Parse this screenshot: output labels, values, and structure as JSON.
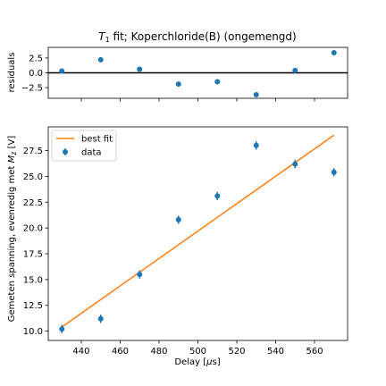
{
  "chart_data": [
    {
      "type": "scatter",
      "role": "residuals",
      "title_symbol": "T",
      "title_subscript": "1",
      "title_rest": " fit; Koperchloride(B) (ongemengd)",
      "ylabel": "residuals",
      "ylim": [
        -4.3,
        4.3
      ],
      "xlim": [
        423,
        577
      ],
      "yticks": [
        -2.5,
        0.0,
        2.5
      ],
      "ytick_labels": [
        "−2.5",
        "0.0",
        "2.5"
      ],
      "zero_line": true,
      "series": [
        {
          "name": "",
          "color": "#1f77b4",
          "x": [
            430,
            450,
            470,
            490,
            510,
            530,
            550,
            570
          ],
          "y": [
            0.3,
            2.2,
            0.6,
            -1.9,
            -1.5,
            -3.7,
            0.4,
            3.4
          ]
        }
      ]
    },
    {
      "type": "scatter",
      "role": "fit",
      "xlabel_prefix": "Delay [",
      "xlabel_greek": "μ",
      "xlabel_unit": "s]",
      "ylabel_prefix": "Gemeten spanning, evenredig met ",
      "ylabel_symbol": "M",
      "ylabel_subscript": "z",
      "ylabel_suffix": " [V]",
      "xlim": [
        423,
        577
      ],
      "ylim": [
        9.1,
        29.8
      ],
      "xticks": [
        440,
        460,
        480,
        500,
        520,
        540,
        560
      ],
      "yticks": [
        10.0,
        12.5,
        15.0,
        17.5,
        20.0,
        22.5,
        25.0,
        27.5
      ],
      "ytick_labels": [
        "10.0",
        "12.5",
        "15.0",
        "17.5",
        "20.0",
        "22.5",
        "25.0",
        "27.5"
      ],
      "legend": {
        "position": "top-left",
        "fit_label": "best fit",
        "data_label": "data"
      },
      "series": [
        {
          "name": "data",
          "color": "#1f77b4",
          "x": [
            430,
            450,
            470,
            490,
            510,
            530,
            550,
            570
          ],
          "y": [
            10.2,
            11.2,
            15.5,
            20.8,
            23.1,
            28.0,
            26.2,
            25.4
          ],
          "yerr": [
            0.4,
            0.4,
            0.4,
            0.4,
            0.4,
            0.4,
            0.4,
            0.4
          ]
        },
        {
          "name": "best fit",
          "color": "#ff7f0e",
          "style": "line",
          "x": [
            430,
            570
          ],
          "y": [
            10.4,
            29.0
          ]
        }
      ]
    }
  ]
}
